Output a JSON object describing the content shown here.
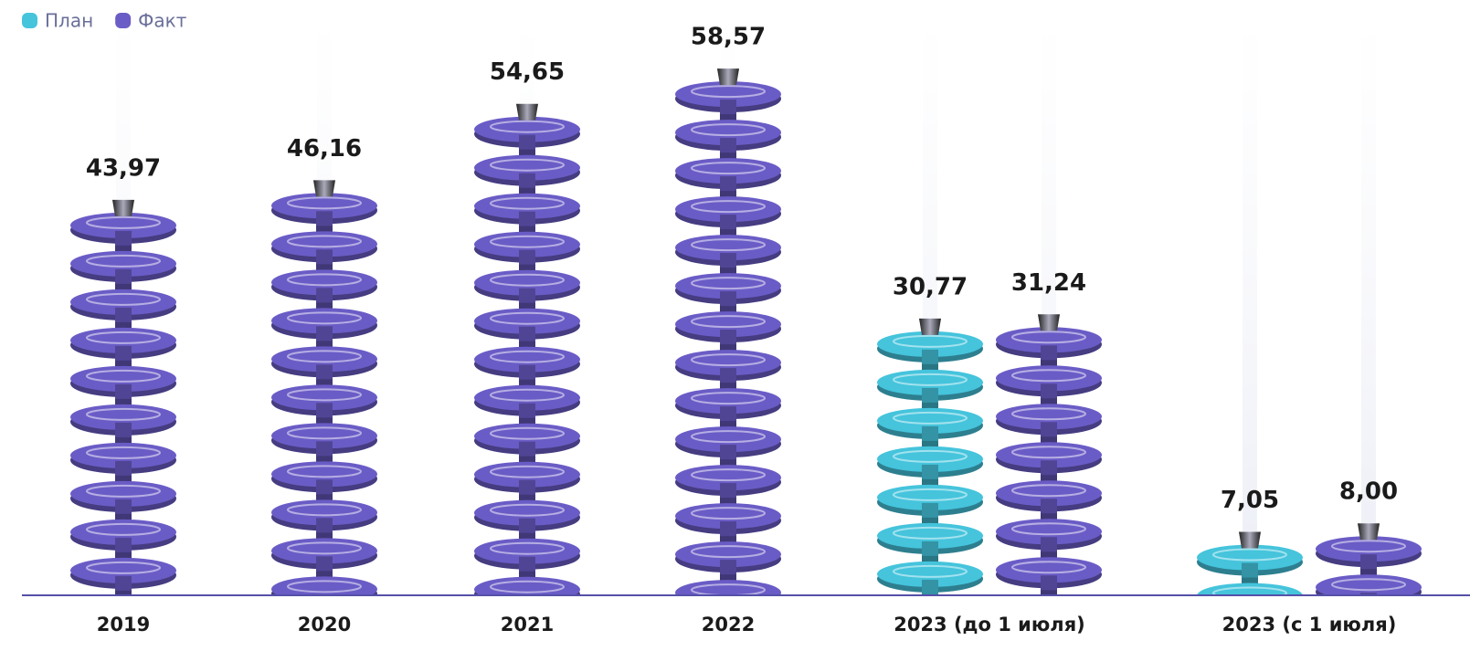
{
  "chart_data": {
    "type": "bar",
    "categories": [
      "2019",
      "2020",
      "2021",
      "2022",
      "2023 (до 1 июля)",
      "2023 (с 1 июля)"
    ],
    "series": [
      {
        "name": "План",
        "color": "#45c4dc",
        "values": [
          null,
          null,
          null,
          null,
          30.77,
          7.05
        ],
        "value_labels": [
          null,
          null,
          null,
          null,
          "30,77",
          "7,05"
        ]
      },
      {
        "name": "Факт",
        "color": "#6a5cc6",
        "values": [
          43.97,
          46.16,
          54.65,
          58.57,
          31.24,
          8.0
        ],
        "value_labels": [
          "43,97",
          "46,16",
          "54,65",
          "58,57",
          "31,24",
          "8,00"
        ]
      }
    ]
  }
}
